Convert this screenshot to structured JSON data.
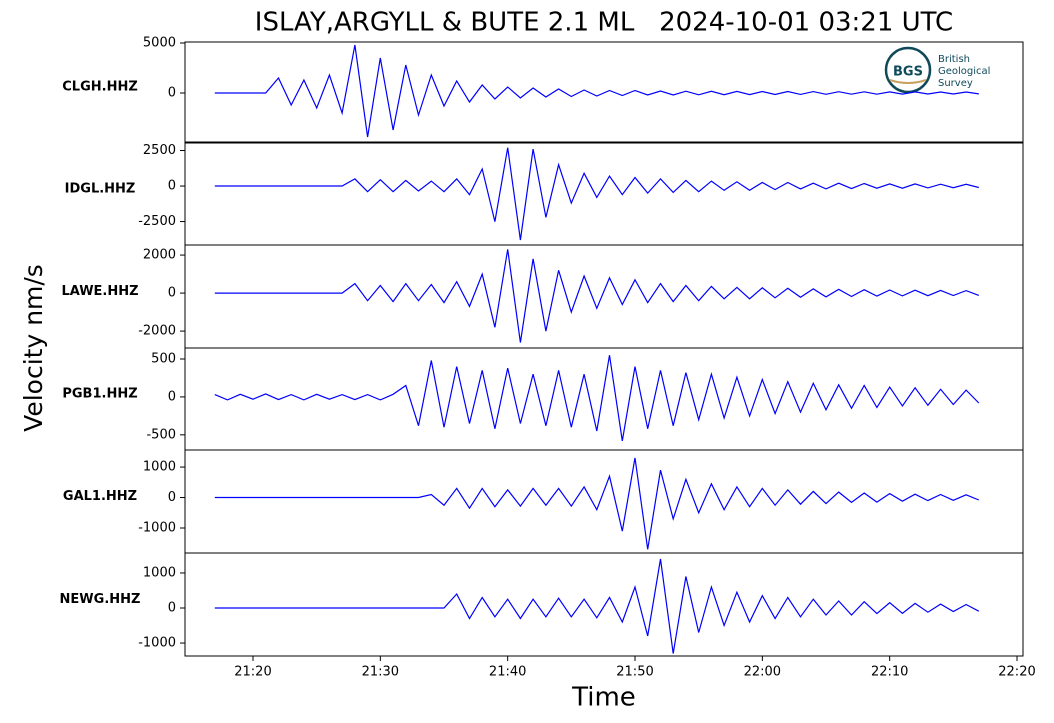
{
  "title": "ISLAY,ARGYLL & BUTE 2.1 ML   2024-10-01 03:21 UTC",
  "ylabel": "Velocity nm/s",
  "xlabel": "Time",
  "logo": {
    "mark": "BGS",
    "lines": [
      "British",
      "Geological",
      "Survey"
    ]
  },
  "chart_data": [
    {
      "type": "line",
      "label": "CLGH.HHZ",
      "color": "#0000ff",
      "xlim": [
        14.66,
        80.47
      ],
      "ylim": [
        -4900,
        5100
      ],
      "yticks": [
        0,
        5000
      ],
      "x": [
        17,
        18,
        19,
        20,
        21,
        22,
        23,
        24,
        25,
        26,
        27,
        28,
        29,
        30,
        31,
        32,
        33,
        34,
        35,
        36,
        37,
        38,
        39,
        40,
        41,
        42,
        43,
        44,
        45,
        46,
        47,
        48,
        49,
        50,
        51,
        52,
        53,
        54,
        55,
        56,
        57,
        58,
        59,
        60,
        61,
        62,
        63,
        64,
        65,
        66,
        67,
        68,
        69,
        70,
        71,
        72,
        73,
        74,
        75,
        76,
        77
      ],
      "values": [
        0,
        0,
        0,
        0,
        0,
        1500,
        -1200,
        1300,
        -1500,
        1800,
        -2000,
        4800,
        -4400,
        3500,
        -3700,
        2800,
        -2200,
        1800,
        -1300,
        1200,
        -900,
        800,
        -600,
        600,
        -500,
        500,
        -400,
        400,
        -350,
        300,
        -300,
        250,
        -250,
        250,
        -200,
        200,
        -200,
        180,
        -180,
        170,
        -170,
        160,
        -160,
        150,
        -150,
        150,
        -140,
        140,
        -130,
        130,
        -120,
        120,
        -120,
        110,
        -110,
        110,
        -100,
        100,
        -100,
        100,
        -90
      ]
    },
    {
      "type": "line",
      "label": "IDGL.HHZ",
      "color": "#0000ff",
      "xlim": [
        14.66,
        80.47
      ],
      "ylim": [
        -4150,
        3030
      ],
      "yticks": [
        -2500,
        0,
        2500
      ],
      "x": [
        17,
        18,
        19,
        20,
        21,
        22,
        23,
        24,
        25,
        26,
        27,
        28,
        29,
        30,
        31,
        32,
        33,
        34,
        35,
        36,
        37,
        38,
        39,
        40,
        41,
        42,
        43,
        44,
        45,
        46,
        47,
        48,
        49,
        50,
        51,
        52,
        53,
        54,
        55,
        56,
        57,
        58,
        59,
        60,
        61,
        62,
        63,
        64,
        65,
        66,
        67,
        68,
        69,
        70,
        71,
        72,
        73,
        74,
        75,
        76,
        77
      ],
      "values": [
        0,
        0,
        0,
        0,
        0,
        0,
        0,
        0,
        0,
        0,
        0,
        500,
        -400,
        450,
        -400,
        400,
        -350,
        350,
        -400,
        500,
        -600,
        1200,
        -2500,
        2700,
        -3800,
        2600,
        -2200,
        1500,
        -1200,
        900,
        -800,
        700,
        -600,
        600,
        -500,
        500,
        -450,
        400,
        -400,
        350,
        -300,
        300,
        -300,
        250,
        -250,
        250,
        -200,
        200,
        -200,
        200,
        -180,
        180,
        -150,
        150,
        -150,
        150,
        -130,
        130,
        -120,
        120,
        -100
      ]
    },
    {
      "type": "line",
      "label": "LAWE.HHZ",
      "color": "#0000ff",
      "xlim": [
        14.66,
        80.47
      ],
      "ylim": [
        -2890,
        2530
      ],
      "yticks": [
        -2000,
        0,
        2000
      ],
      "x": [
        17,
        18,
        19,
        20,
        21,
        22,
        23,
        24,
        25,
        26,
        27,
        28,
        29,
        30,
        31,
        32,
        33,
        34,
        35,
        36,
        37,
        38,
        39,
        40,
        41,
        42,
        43,
        44,
        45,
        46,
        47,
        48,
        49,
        50,
        51,
        52,
        53,
        54,
        55,
        56,
        57,
        58,
        59,
        60,
        61,
        62,
        63,
        64,
        65,
        66,
        67,
        68,
        69,
        70,
        71,
        72,
        73,
        74,
        75,
        76,
        77
      ],
      "values": [
        0,
        0,
        0,
        0,
        0,
        0,
        0,
        0,
        0,
        0,
        0,
        500,
        -400,
        400,
        -450,
        500,
        -400,
        450,
        -500,
        600,
        -700,
        1000,
        -1800,
        2300,
        -2600,
        1800,
        -2000,
        1200,
        -1000,
        900,
        -800,
        800,
        -600,
        700,
        -500,
        500,
        -450,
        400,
        -400,
        350,
        -300,
        300,
        -300,
        280,
        -250,
        250,
        -220,
        220,
        -200,
        200,
        -180,
        180,
        -160,
        160,
        -150,
        150,
        -140,
        140,
        -130,
        130,
        -120
      ]
    },
    {
      "type": "line",
      "label": "PGB1.HHZ",
      "color": "#0000ff",
      "xlim": [
        14.66,
        80.47
      ],
      "ylim": [
        -700,
        645
      ],
      "yticks": [
        -500,
        0,
        500
      ],
      "x": [
        17,
        18,
        19,
        20,
        21,
        22,
        23,
        24,
        25,
        26,
        27,
        28,
        29,
        30,
        31,
        32,
        33,
        34,
        35,
        36,
        37,
        38,
        39,
        40,
        41,
        42,
        43,
        44,
        45,
        46,
        47,
        48,
        49,
        50,
        51,
        52,
        53,
        54,
        55,
        56,
        57,
        58,
        59,
        60,
        61,
        62,
        63,
        64,
        65,
        66,
        67,
        68,
        69,
        70,
        71,
        72,
        73,
        74,
        75,
        76,
        77
      ],
      "values": [
        30,
        -40,
        35,
        -30,
        40,
        -35,
        30,
        -40,
        35,
        -30,
        30,
        -35,
        30,
        -40,
        35,
        150,
        -380,
        480,
        -400,
        400,
        -350,
        350,
        -420,
        380,
        -350,
        300,
        -380,
        350,
        -400,
        300,
        -450,
        550,
        -580,
        400,
        -420,
        350,
        -380,
        320,
        -300,
        300,
        -280,
        260,
        -250,
        230,
        -220,
        200,
        -200,
        180,
        -170,
        160,
        -150,
        150,
        -140,
        130,
        -120,
        120,
        -110,
        100,
        -100,
        90,
        -80
      ]
    },
    {
      "type": "line",
      "label": "GAL1.HHZ",
      "color": "#0000ff",
      "xlim": [
        14.66,
        80.47
      ],
      "ylim": [
        -1820,
        1560
      ],
      "yticks": [
        -1000,
        0,
        1000
      ],
      "x": [
        17,
        18,
        19,
        20,
        21,
        22,
        23,
        24,
        25,
        26,
        27,
        28,
        29,
        30,
        31,
        32,
        33,
        34,
        35,
        36,
        37,
        38,
        39,
        40,
        41,
        42,
        43,
        44,
        45,
        46,
        47,
        48,
        49,
        50,
        51,
        52,
        53,
        54,
        55,
        56,
        57,
        58,
        59,
        60,
        61,
        62,
        63,
        64,
        65,
        66,
        67,
        68,
        69,
        70,
        71,
        72,
        73,
        74,
        75,
        76,
        77
      ],
      "values": [
        0,
        0,
        0,
        0,
        0,
        0,
        0,
        0,
        0,
        0,
        0,
        0,
        0,
        0,
        0,
        0,
        0,
        100,
        -250,
        300,
        -350,
        300,
        -300,
        250,
        -280,
        300,
        -250,
        300,
        -280,
        350,
        -400,
        700,
        -1100,
        1300,
        -1700,
        900,
        -700,
        600,
        -500,
        450,
        -400,
        350,
        -300,
        300,
        -250,
        250,
        -220,
        200,
        -200,
        180,
        -160,
        150,
        -150,
        130,
        -120,
        110,
        -100,
        100,
        -90,
        90,
        -80
      ]
    },
    {
      "type": "line",
      "label": "NEWG.HHZ",
      "color": "#0000ff",
      "xlim": [
        14.66,
        80.47
      ],
      "ylim": [
        -1370,
        1570
      ],
      "yticks": [
        -1000,
        0,
        1000
      ],
      "xticks": [
        {
          "value": 20,
          "label": "21:20"
        },
        {
          "value": 30,
          "label": "21:30"
        },
        {
          "value": 40,
          "label": "21:40"
        },
        {
          "value": 50,
          "label": "21:50"
        },
        {
          "value": 60,
          "label": "22:00"
        },
        {
          "value": 70,
          "label": "22:10"
        },
        {
          "value": 80,
          "label": "22:20"
        }
      ],
      "x": [
        17,
        18,
        19,
        20,
        21,
        22,
        23,
        24,
        25,
        26,
        27,
        28,
        29,
        30,
        31,
        32,
        33,
        34,
        35,
        36,
        37,
        38,
        39,
        40,
        41,
        42,
        43,
        44,
        45,
        46,
        47,
        48,
        49,
        50,
        51,
        52,
        53,
        54,
        55,
        56,
        57,
        58,
        59,
        60,
        61,
        62,
        63,
        64,
        65,
        66,
        67,
        68,
        69,
        70,
        71,
        72,
        73,
        74,
        75,
        76,
        77
      ],
      "values": [
        0,
        0,
        0,
        0,
        0,
        0,
        0,
        0,
        0,
        0,
        0,
        0,
        0,
        0,
        0,
        0,
        0,
        0,
        0,
        400,
        -300,
        300,
        -250,
        250,
        -300,
        250,
        -250,
        280,
        -250,
        250,
        -280,
        300,
        -400,
        600,
        -800,
        1400,
        -1300,
        900,
        -700,
        600,
        -500,
        450,
        -400,
        350,
        -300,
        300,
        -250,
        250,
        -200,
        200,
        -200,
        180,
        -160,
        150,
        -150,
        130,
        -120,
        110,
        -100,
        100,
        -90
      ]
    }
  ]
}
